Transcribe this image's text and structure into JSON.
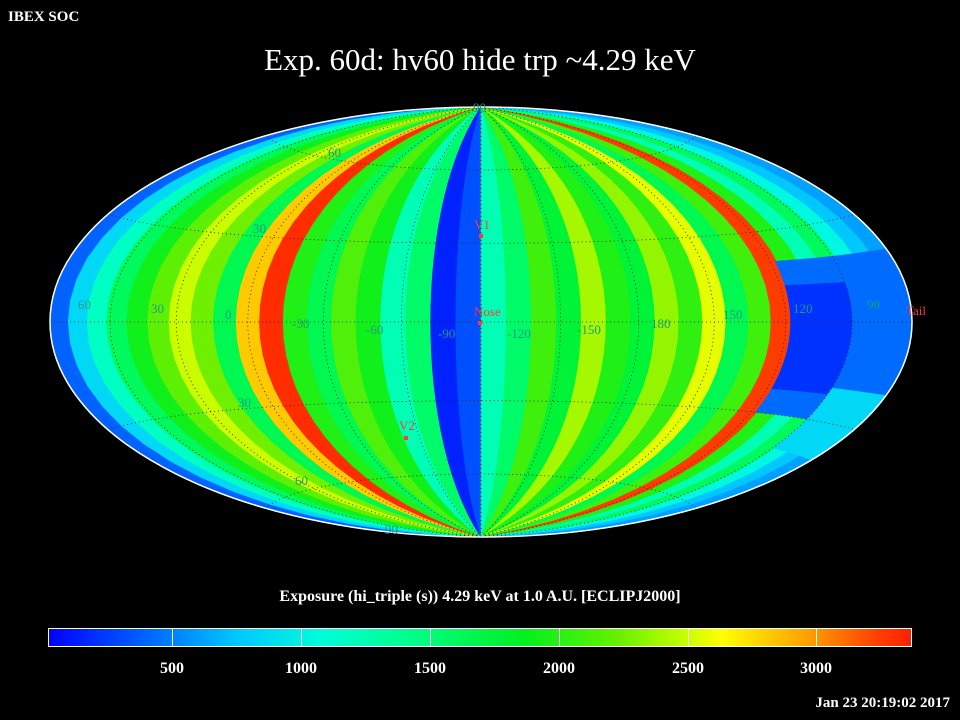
{
  "header": {
    "org": "IBEX SOC",
    "title": "Exp.   60d: hv60 hide trp ~4.29 keV"
  },
  "map": {
    "projection": "Hammer-Aitoff (all-sky)",
    "graticule": {
      "lon_step_deg": 30,
      "lat_step_deg": 30
    },
    "lat_labels": [
      "90",
      "60",
      "30",
      "30",
      "60",
      "90"
    ],
    "lon_labels": [
      "60",
      "30",
      "0",
      "-30",
      "-60",
      "-90",
      "-120",
      "-150",
      "180",
      "150",
      "120",
      "90"
    ],
    "markers": [
      {
        "name": "V1",
        "color": "#ff3030"
      },
      {
        "name": "Nose",
        "color": "#ff3030"
      },
      {
        "name": "V2",
        "color": "#ff3030"
      },
      {
        "name": "Tail",
        "color": "#ff3030"
      }
    ],
    "exposure_strips_left_to_right": [
      420,
      900,
      1250,
      1650,
      1950,
      2200,
      2500,
      2250,
      1700,
      2900,
      3400,
      2000,
      1700,
      2150,
      1950,
      1300,
      1600,
      150,
      350,
      1300,
      1600,
      2100,
      1800,
      2400,
      2000,
      1800,
      2350,
      2050,
      2600,
      1700,
      2100,
      3300,
      2000,
      1300,
      1650,
      1100,
      800,
      650
    ]
  },
  "colorbar": {
    "title": "Exposure (hi_triple (s))  4.29 keV at 1.0 A.U. [ECLIPJ2000]",
    "ticks": [
      "500",
      "1000",
      "1500",
      "2000",
      "2500",
      "3000"
    ]
  },
  "timestamp": "Jan 23 20:19:02 2017"
}
